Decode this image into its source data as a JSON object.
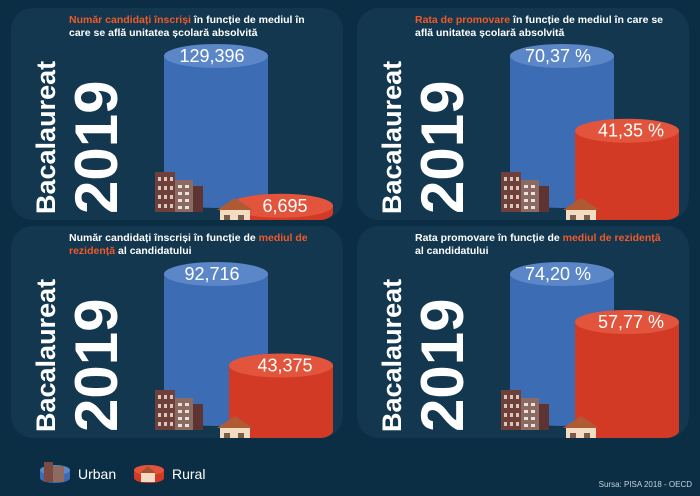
{
  "vertical_title": {
    "line1": "Bacalaureat",
    "line2": "2019"
  },
  "colors": {
    "urban": "#3c6cb4",
    "urban_top": "#5b87c9",
    "rural": "#d23a26",
    "rural_top": "#e2553c",
    "accent": "#f05a28"
  },
  "chart_data": [
    {
      "type": "bar",
      "title_parts": [
        {
          "text": "Număr candidați înscriși",
          "hl": true
        },
        {
          "text": " în funcție de mediul în care se află unitatea școlară absolvită",
          "hl": false
        }
      ],
      "categories": [
        "Urban",
        "Rural"
      ],
      "values": [
        129396,
        6695
      ],
      "labels": [
        "129,396",
        "6,695"
      ]
    },
    {
      "type": "bar",
      "title_parts": [
        {
          "text": "Rata de promovare",
          "hl": true
        },
        {
          "text": " în funcție de mediul în care se află unitatea școlară absolvită",
          "hl": false
        }
      ],
      "categories": [
        "Urban",
        "Rural"
      ],
      "values": [
        70.37,
        41.35
      ],
      "labels": [
        "70,37 %",
        "41,35 %"
      ]
    },
    {
      "type": "bar",
      "title_parts": [
        {
          "text": "Număr candidați înscriși în funcție de ",
          "hl": false
        },
        {
          "text": "mediul de rezidență",
          "hl": true
        },
        {
          "text": " al candidatului",
          "hl": false
        }
      ],
      "categories": [
        "Urban",
        "Rural"
      ],
      "values": [
        92716,
        43375
      ],
      "labels": [
        "92,716",
        "43,375"
      ]
    },
    {
      "type": "bar",
      "title_parts": [
        {
          "text": "Rata promovare în funcție de ",
          "hl": false
        },
        {
          "text": "mediul de rezidență",
          "hl": true
        },
        {
          "text": " al candidatului",
          "hl": false
        }
      ],
      "categories": [
        "Urban",
        "Rural"
      ],
      "values": [
        74.2,
        57.77
      ],
      "labels": [
        "74,20 %",
        "57,77 %"
      ]
    }
  ],
  "legend": {
    "urban": "Urban",
    "rural": "Rural"
  },
  "source": "Sursa: PISA 2018 - OECD"
}
